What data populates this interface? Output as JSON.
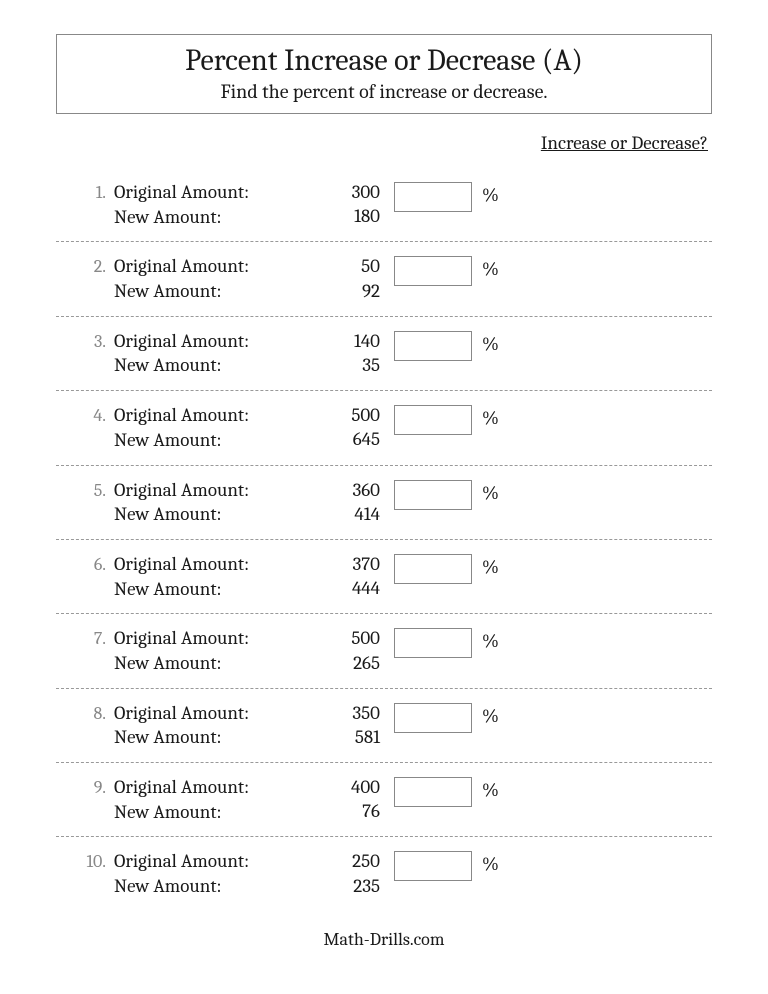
{
  "title": "Percent Increase or Decrease (A)",
  "subtitle": "Find the percent of increase or decrease.",
  "column_header": "Increase or Decrease?",
  "original_label": "Original Amount:",
  "new_label": "New Amount:",
  "percent_sign": "%",
  "footer": "Math-Drills.com",
  "items": [
    {
      "n": "1.",
      "orig": "300",
      "new_": "180"
    },
    {
      "n": "2.",
      "orig": "50",
      "new_": "92"
    },
    {
      "n": "3.",
      "orig": "140",
      "new_": "35"
    },
    {
      "n": "4.",
      "orig": "500",
      "new_": "645"
    },
    {
      "n": "5.",
      "orig": "360",
      "new_": "414"
    },
    {
      "n": "6.",
      "orig": "370",
      "new_": "444"
    },
    {
      "n": "7.",
      "orig": "500",
      "new_": "265"
    },
    {
      "n": "8.",
      "orig": "350",
      "new_": "581"
    },
    {
      "n": "9.",
      "orig": "400",
      "new_": "76"
    },
    {
      "n": "10.",
      "orig": "250",
      "new_": "235"
    }
  ]
}
